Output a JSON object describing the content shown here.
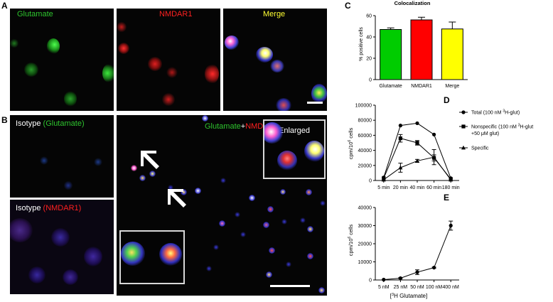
{
  "panels": {
    "a": {
      "letter": "A",
      "glutamate": "Glutamate",
      "nmdar": "NMDAR1",
      "merge": "Merge"
    },
    "b": {
      "letter": "B",
      "isotype1_prefix": "Isotype",
      "isotype1_suffix": "(Glutamate)",
      "isotype2_prefix": "Isotype",
      "isotype2_suffix": "(NMDAR1)",
      "main_label_green": "Glutamate",
      "main_label_plus": "+",
      "main_label_red": "NMDAR1",
      "enlarged": "Enlarged"
    },
    "c": {
      "letter": "C"
    },
    "d": {
      "letter": "D"
    },
    "e": {
      "letter": "E"
    }
  },
  "colors": {
    "green": "#2ec42e",
    "red": "#ff2020",
    "yellow": "#ffff33",
    "blue": "#3030c0"
  },
  "chart_data": [
    {
      "type": "bar",
      "title": "Colocalization",
      "ylabel": "% positive cells",
      "categories": [
        "Glutamate",
        "NMDAR1",
        "Merge"
      ],
      "values": [
        47,
        56,
        47.5
      ],
      "errors": [
        1.5,
        2.5,
        6.5
      ],
      "bar_colors": [
        "#00cc00",
        "#ff0000",
        "#ffff00"
      ],
      "ylim": [
        0,
        60
      ],
      "yticks": [
        "0",
        "20",
        "40",
        "60"
      ]
    },
    {
      "type": "line",
      "ylabel_main": "cpm/10",
      "ylabel_sup": "6",
      "ylabel_tail": " cells",
      "categories": [
        "5 min",
        "20 min",
        "40 min",
        "60 min",
        "180 min"
      ],
      "ylim": [
        0,
        100000
      ],
      "yticks": [
        "0",
        "20000",
        "40000",
        "60000",
        "80000",
        "100000"
      ],
      "series": [
        {
          "name": "Total (100 nM 3H-glut)",
          "name_parts": [
            "Total (100 nM ",
            "3",
            "H-glut)"
          ],
          "marker": "circle",
          "values": [
            4000,
            73000,
            76000,
            61000,
            3000
          ],
          "errors": [
            0,
            0,
            0,
            0,
            0
          ]
        },
        {
          "name": "Nonspecific (100 nM 3H-glut +50 μM glut)",
          "name_parts": [
            "Nonspecific (100 nM ",
            "3",
            "H-glut"
          ],
          "name_line2": "+50 μM glut)",
          "marker": "square",
          "values": [
            3000,
            56000,
            50000,
            30000,
            2000
          ],
          "errors": [
            0,
            5000,
            3000,
            4000,
            0
          ]
        },
        {
          "name": "Specific",
          "name_parts": [
            "Specific",
            "",
            ""
          ],
          "marker": "triangle",
          "values": [
            1000,
            17000,
            26000,
            31000,
            1000
          ],
          "errors": [
            0,
            6000,
            2000,
            10000,
            0
          ]
        }
      ]
    },
    {
      "type": "line",
      "ylabel_main": "cpm/10",
      "ylabel_sup": "6",
      "ylabel_tail": " cells",
      "xlabel_pre": "[",
      "xlabel_sup": "3",
      "xlabel_tail": "H Glutamate]",
      "categories": [
        "5 nM",
        "25 nM",
        "50 nM",
        "100 nM",
        "400 nM"
      ],
      "ylim": [
        0,
        40000
      ],
      "yticks": [
        "0",
        "10000",
        "20000",
        "30000",
        "40000"
      ],
      "series": [
        {
          "marker": "circle",
          "values": [
            200,
            1000,
            4300,
            6800,
            30000
          ],
          "errors": [
            0,
            300,
            1300,
            300,
            2500
          ]
        }
      ]
    }
  ]
}
